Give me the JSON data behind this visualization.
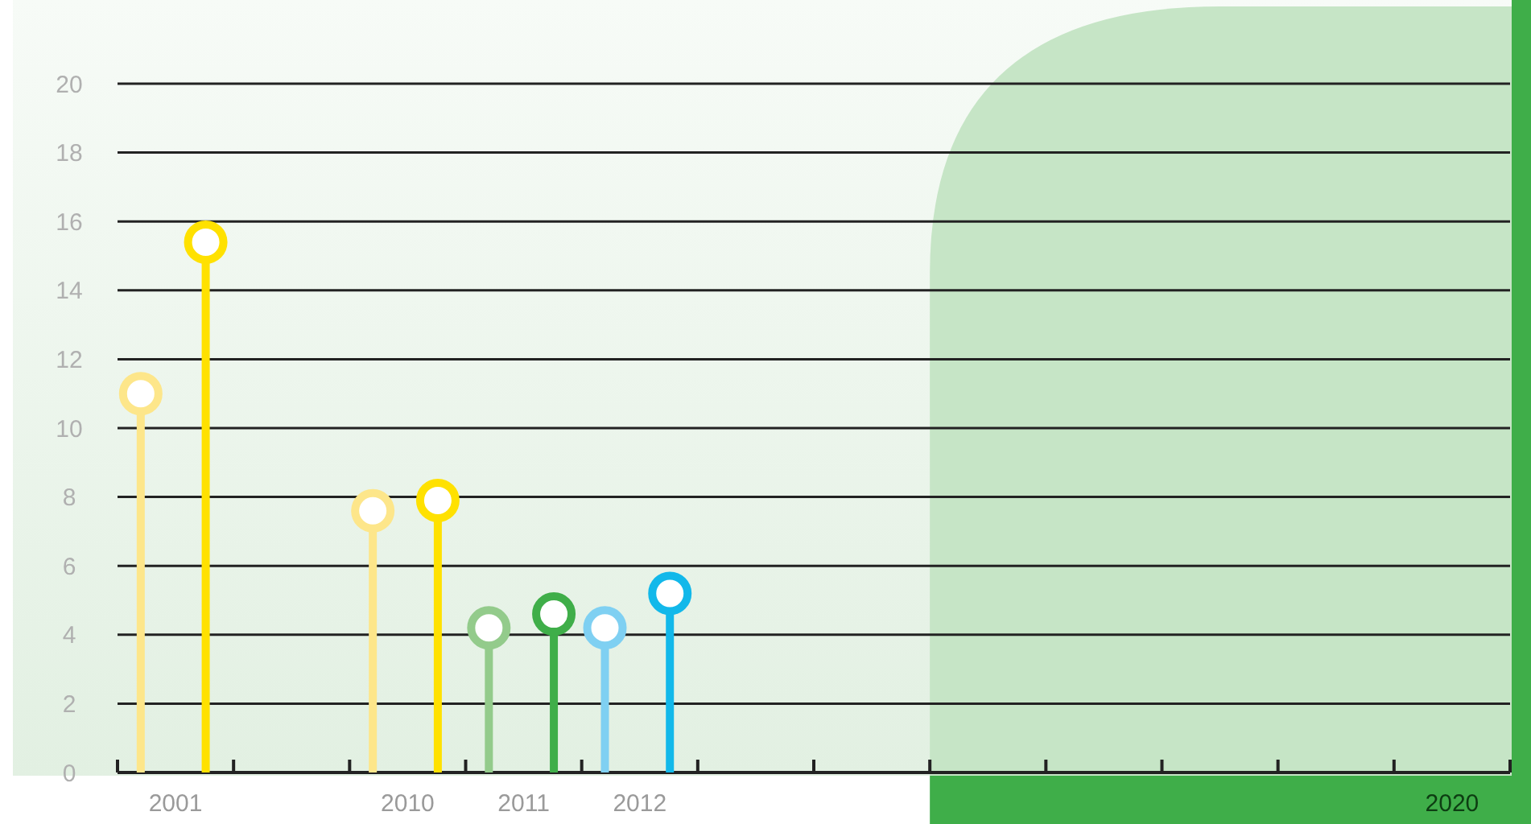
{
  "chart_data": {
    "type": "lollipop",
    "categories": [
      "2001",
      null,
      "2010",
      "2011",
      "2012",
      null,
      null,
      null,
      null,
      null,
      null,
      "2020"
    ],
    "series": [
      {
        "colors": [
          "#fde68a",
          null,
          "#fde68a",
          "#93cb8b",
          "#7fd0f2",
          null,
          null,
          null,
          null,
          null,
          null,
          null
        ],
        "values": [
          11,
          null,
          7.6,
          4.2,
          4.2,
          null,
          null,
          null,
          null,
          null,
          null,
          null
        ]
      },
      {
        "colors": [
          "#ffe100",
          null,
          "#ffe100",
          "#3fae49",
          "#12b8ea",
          null,
          null,
          null,
          null,
          null,
          null,
          null
        ],
        "values": [
          15.4,
          null,
          7.9,
          4.6,
          5.2,
          null,
          null,
          null,
          null,
          null,
          null,
          null
        ]
      }
    ],
    "ylim": [
      0,
      20
    ],
    "yticks": [
      0,
      2,
      4,
      6,
      8,
      10,
      12,
      14,
      16,
      18,
      20
    ],
    "grid": "y",
    "marker": "circle"
  }
}
